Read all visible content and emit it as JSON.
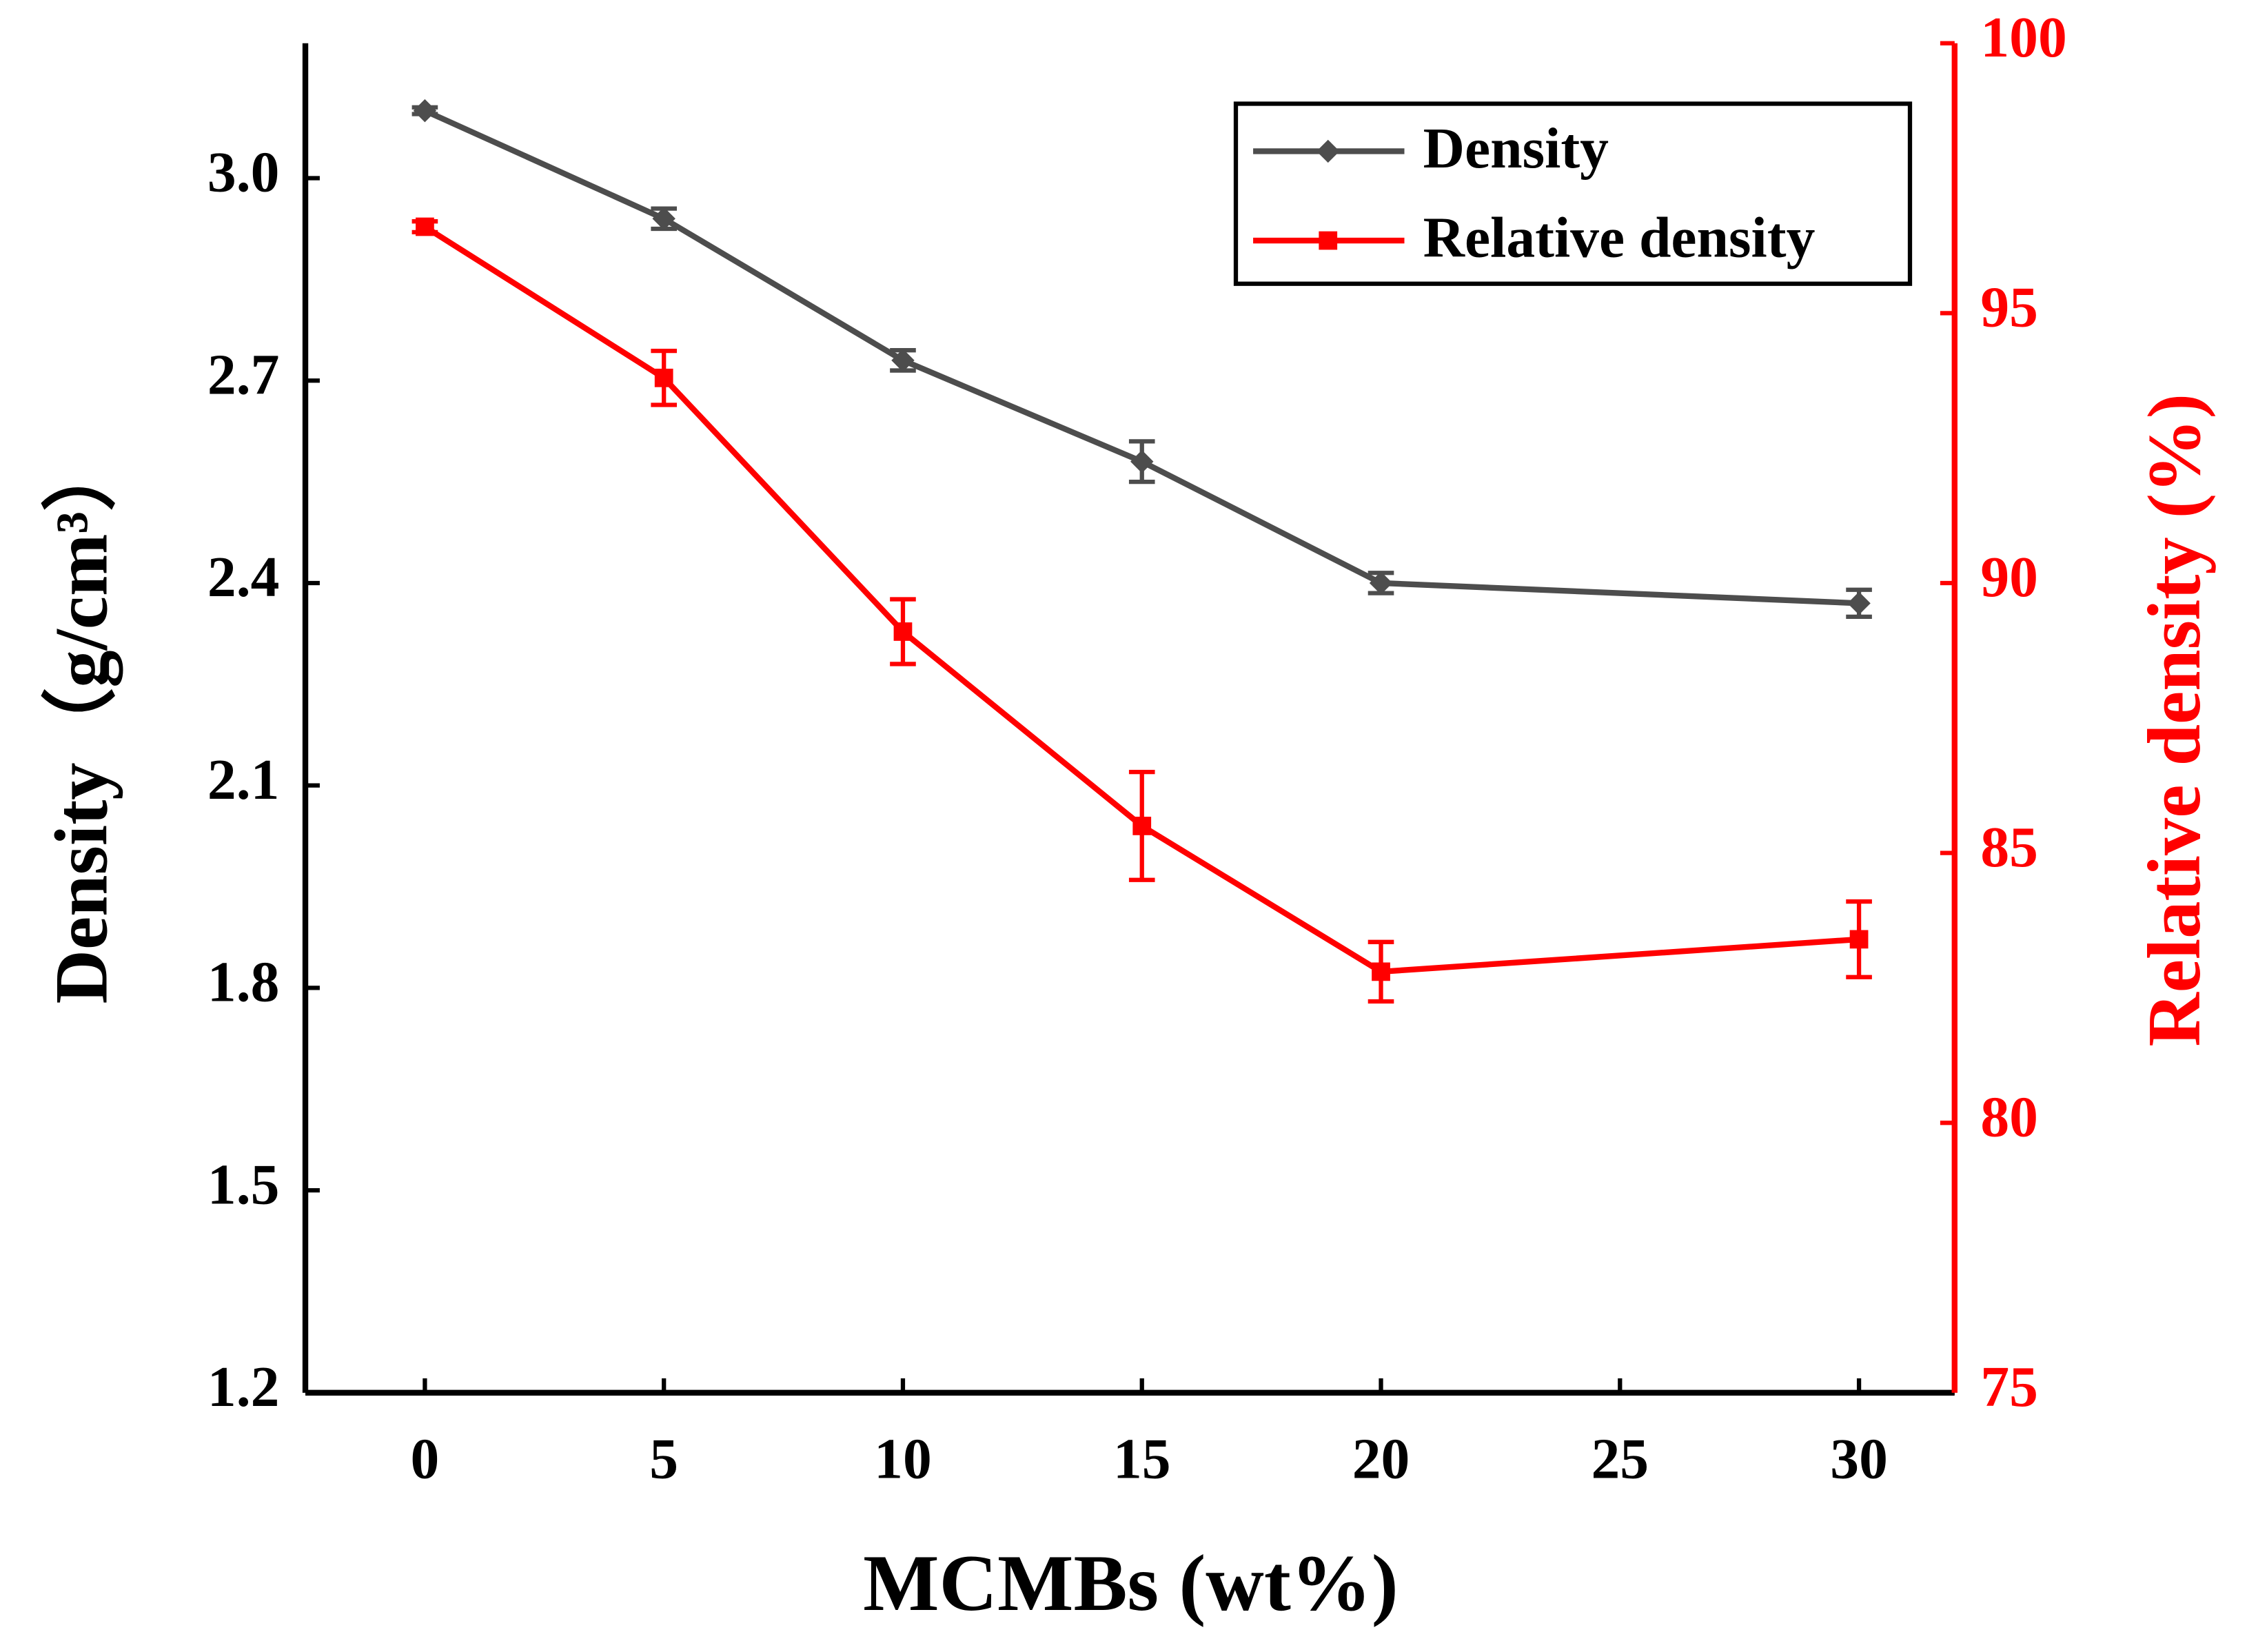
{
  "chart_data": {
    "type": "line",
    "xlabel": "MCMBs (wt%)",
    "ylabel": "Density（g/cm³）",
    "y2label": "Relative density (%)",
    "x": [
      0,
      5,
      10,
      15,
      20,
      30
    ],
    "xlim": [
      -2.5,
      32
    ],
    "xticks": [
      0,
      5,
      10,
      15,
      20,
      25,
      30
    ],
    "ylim": [
      1.2,
      3.2
    ],
    "yticks": [
      1.2,
      1.5,
      1.8,
      2.1,
      2.4,
      2.7,
      {
        "value": 3,
        "label": "3.0"
      }
    ],
    "y2lim": [
      75,
      100
    ],
    "y2ticks": [
      75,
      80,
      85,
      90,
      95,
      100
    ],
    "legend": "upper right",
    "series": [
      {
        "name": "Density",
        "color": "#4d4d4d",
        "marker": "diamond",
        "values": [
          3.1,
          2.94,
          2.73,
          2.58,
          2.4,
          2.37
        ],
        "errors": [
          0.005,
          0.015,
          0.015,
          0.03,
          0.015,
          0.02
        ]
      },
      {
        "name": "Relative density",
        "color": "#ff0000",
        "marker": "square",
        "axis": "y2",
        "values": [
          96.6,
          93.8,
          89.1,
          85.5,
          82.8,
          83.4
        ],
        "errors": [
          0.1,
          0.5,
          0.6,
          1.0,
          0.55,
          0.7
        ]
      }
    ]
  }
}
